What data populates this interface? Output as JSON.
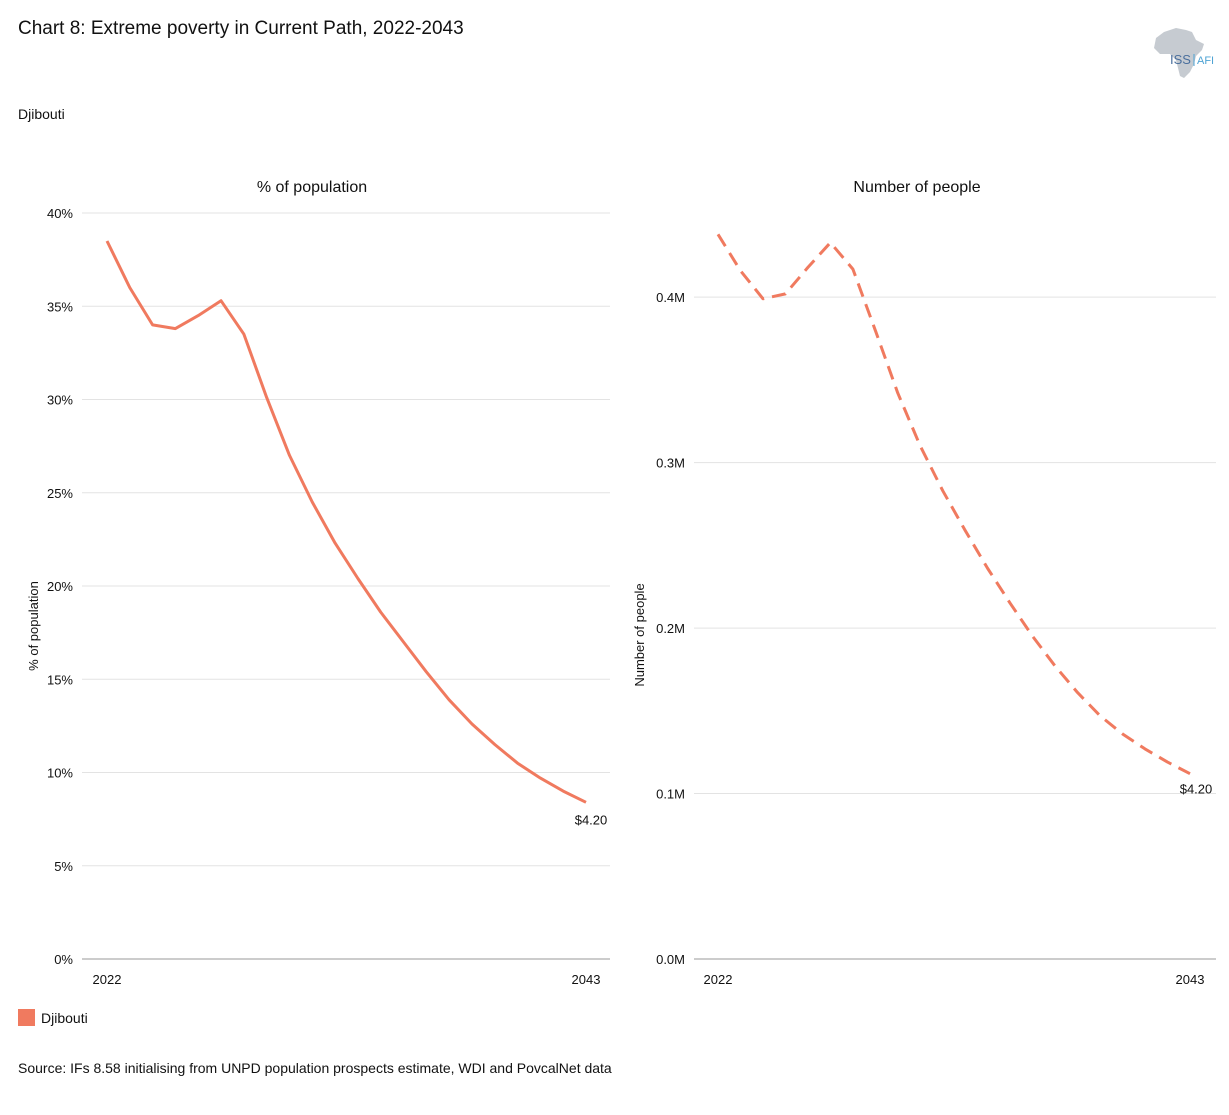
{
  "header": {
    "title": "Chart 8: Extreme poverty in Current Path, 2022-2043",
    "subtitle": "Djibouti",
    "logo_text_left": "ISS",
    "logo_text_right": "AFI"
  },
  "legend": {
    "label": "Djibouti",
    "color": "#f07a5f"
  },
  "footer": {
    "source": "Source: IFs 8.58 initialising from UNPD population prospects estimate, WDI and PovcalNet data"
  },
  "chart_data": [
    {
      "type": "line",
      "title": "% of population",
      "ylabel": "% of population",
      "xlabel": "",
      "ylim": [
        0,
        40
      ],
      "yticks": [
        0,
        5,
        10,
        15,
        20,
        25,
        30,
        35,
        40
      ],
      "ytick_labels": [
        "0%",
        "5%",
        "10%",
        "15%",
        "20%",
        "25%",
        "30%",
        "35%",
        "40%"
      ],
      "xlim": [
        2022,
        2043
      ],
      "xtick_labels": [
        "2022",
        "2043"
      ],
      "line_style": "solid",
      "grid": true,
      "end_label": "$4.20",
      "series": [
        {
          "name": "Djibouti",
          "color": "#f07a5f",
          "x": [
            2022,
            2023,
            2024,
            2025,
            2026,
            2027,
            2028,
            2029,
            2030,
            2031,
            2032,
            2033,
            2034,
            2035,
            2036,
            2037,
            2038,
            2039,
            2040,
            2041,
            2042,
            2043
          ],
          "values": [
            38.5,
            36.0,
            34.0,
            33.8,
            34.5,
            35.3,
            33.5,
            30.1,
            27.0,
            24.5,
            22.3,
            20.4,
            18.6,
            17.0,
            15.4,
            13.9,
            12.6,
            11.5,
            10.5,
            9.7,
            9.0,
            8.4
          ]
        }
      ]
    },
    {
      "type": "line",
      "title": "Number of people",
      "ylabel": "Number of people",
      "xlabel": "",
      "ylim": [
        0,
        0.44
      ],
      "yticks": [
        0,
        0.1,
        0.2,
        0.3,
        0.4
      ],
      "ytick_labels": [
        "0.0M",
        "0.1M",
        "0.2M",
        "0.3M",
        "0.4M"
      ],
      "xlim": [
        2022,
        2043
      ],
      "xtick_labels": [
        "2022",
        "2043"
      ],
      "line_style": "dashed",
      "grid": true,
      "end_label": "$4.20",
      "series": [
        {
          "name": "Djibouti",
          "color": "#f07a5f",
          "x": [
            2022,
            2023,
            2024,
            2025,
            2026,
            2027,
            2028,
            2029,
            2030,
            2031,
            2032,
            2033,
            2034,
            2035,
            2036,
            2037,
            2038,
            2039,
            2040,
            2041,
            2042,
            2043
          ],
          "values": [
            0.438,
            0.416,
            0.399,
            0.402,
            0.418,
            0.433,
            0.417,
            0.38,
            0.342,
            0.31,
            0.283,
            0.259,
            0.236,
            0.215,
            0.195,
            0.177,
            0.161,
            0.147,
            0.136,
            0.127,
            0.119,
            0.112
          ]
        }
      ]
    }
  ]
}
